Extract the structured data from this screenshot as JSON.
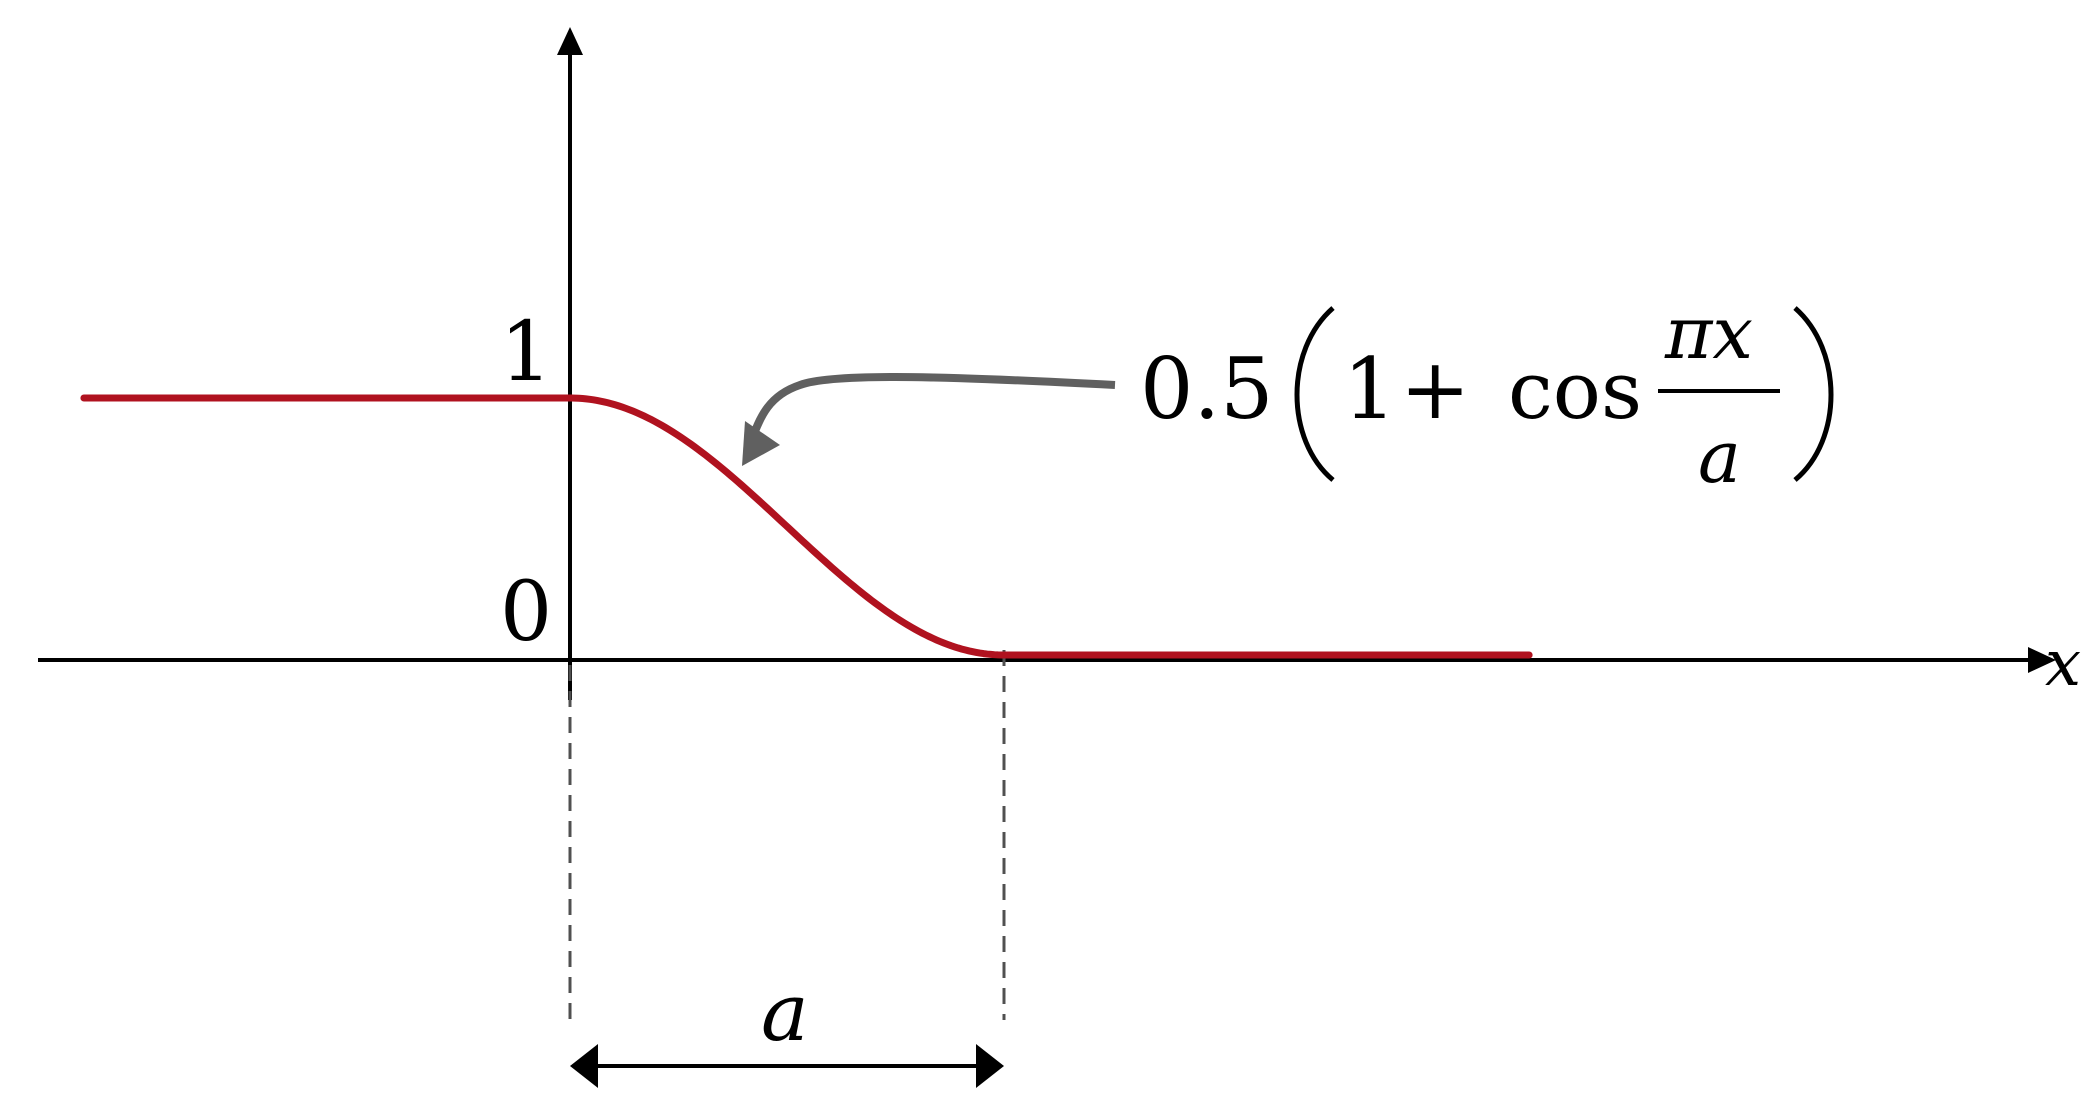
{
  "chart_data": {
    "type": "line",
    "title": "",
    "xlabel": "x",
    "ylabel": "",
    "y_tick_labels": [
      "0",
      "1"
    ],
    "xlim": [
      -1.22,
      3.34
    ],
    "ylim": [
      0,
      1.55
    ],
    "grid": false,
    "legend": "none",
    "series": [
      {
        "formula": "y = 1 for x < 0; y = 0.5(1 + cos(pi x / a)) for 0 <= x <= a; y = 0 for x > a",
        "a": 1,
        "x_start": -1.12,
        "x_end": 2.21,
        "color": "#b0121f"
      }
    ],
    "annotations": {
      "formula": {
        "coefficient": "0.5",
        "one": "1",
        "plus": "+",
        "cos": "cos",
        "numerator": "πx",
        "denominator": "a",
        "arrow_color": "#606060"
      },
      "width_label": "a",
      "guide_color": "#505050"
    },
    "axis_color": "#000000"
  }
}
